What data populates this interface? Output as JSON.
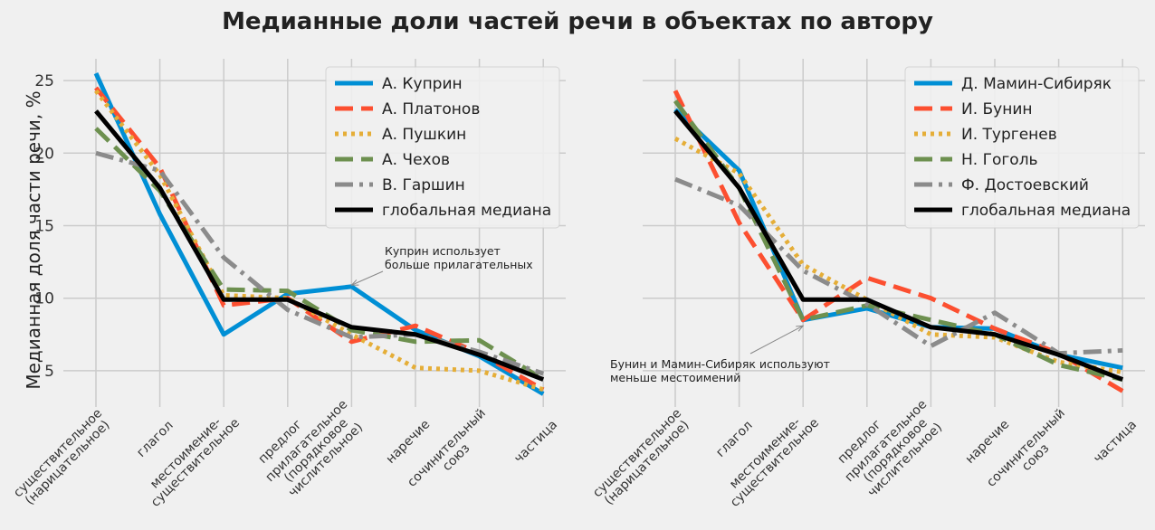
{
  "title": "Медианные доли частей речи в объектах по автору",
  "colors": {
    "background": "#f0f0f0",
    "grid": "#cbcbcb",
    "palette": [
      "#008fd5",
      "#fc4f30",
      "#e5ae38",
      "#6d904f",
      "#8b8b8b",
      "#000000"
    ]
  },
  "chart_data": [
    {
      "type": "line",
      "ylabel": "Медианная доля части речи, %",
      "xlabel": "",
      "yticks": [
        5,
        10,
        15,
        20,
        25
      ],
      "ylim": [
        2.5,
        26.5
      ],
      "grid": true,
      "legend_position": "top-right",
      "categories": [
        [
          "существительное",
          "(нарицательное)"
        ],
        [
          "глагол"
        ],
        [
          "местоимение-",
          "существительное"
        ],
        [
          "предлог"
        ],
        [
          "прилагательное",
          "(порядковое",
          "числительное)"
        ],
        [
          "наречие"
        ],
        [
          "сочинительный",
          "союз"
        ],
        [
          "частица"
        ]
      ],
      "series": [
        {
          "name": "А. Куприн",
          "style": "solid",
          "color": "#008fd5",
          "values": [
            25.5,
            15.8,
            7.5,
            10.3,
            10.8,
            7.8,
            6.0,
            3.4
          ]
        },
        {
          "name": "А. Платонов",
          "style": "dashed",
          "color": "#fc4f30",
          "values": [
            24.5,
            19.0,
            9.5,
            10.0,
            7.0,
            8.1,
            6.2,
            3.7
          ]
        },
        {
          "name": "А. Пушкин",
          "style": "dotted",
          "color": "#e5ae38",
          "values": [
            24.3,
            18.5,
            10.2,
            10.0,
            7.5,
            5.2,
            5.0,
            3.7
          ]
        },
        {
          "name": "А. Чехов",
          "style": "dashed",
          "color": "#6d904f",
          "values": [
            21.7,
            17.4,
            10.6,
            10.5,
            7.8,
            7.0,
            7.1,
            4.4
          ]
        },
        {
          "name": "В. Гаршин",
          "style": "dashdot",
          "color": "#8b8b8b",
          "values": [
            20.0,
            18.8,
            12.8,
            9.2,
            7.3,
            7.5,
            6.3,
            4.8
          ]
        },
        {
          "name": "глобальная медиана",
          "style": "solid",
          "color": "#000000",
          "values": [
            22.9,
            17.6,
            9.9,
            9.9,
            8.0,
            7.5,
            6.1,
            4.4
          ]
        }
      ],
      "annotation": {
        "text": [
          "Куприн использует",
          "больше прилагательных"
        ],
        "x": 4,
        "y": 10.9
      }
    },
    {
      "type": "line",
      "ylabel": "",
      "xlabel": "",
      "yticks": [
        5,
        10,
        15,
        20,
        25
      ],
      "ylim": [
        2.5,
        26.5
      ],
      "grid": true,
      "legend_position": "top-right",
      "categories": [
        [
          "существительное",
          "(нарицательное)"
        ],
        [
          "глагол"
        ],
        [
          "местоимение-",
          "существительное"
        ],
        [
          "предлог"
        ],
        [
          "прилагательное",
          "(порядковое",
          "числительное)"
        ],
        [
          "наречие"
        ],
        [
          "сочинительный",
          "союз"
        ],
        [
          "частица"
        ]
      ],
      "series": [
        {
          "name": "Д. Мамин-Сибиряк",
          "style": "solid",
          "color": "#008fd5",
          "values": [
            23.0,
            18.8,
            8.5,
            9.3,
            8.0,
            7.9,
            6.1,
            5.2
          ]
        },
        {
          "name": "И. Бунин",
          "style": "dashed",
          "color": "#fc4f30",
          "values": [
            24.3,
            15.2,
            8.5,
            11.4,
            10.0,
            7.9,
            6.2,
            3.6
          ]
        },
        {
          "name": "И. Тургенев",
          "style": "dotted",
          "color": "#e5ae38",
          "values": [
            21.0,
            18.6,
            12.3,
            9.9,
            7.5,
            7.3,
            5.6,
            4.9
          ]
        },
        {
          "name": "Н. Гоголь",
          "style": "dashed",
          "color": "#6d904f",
          "values": [
            23.6,
            17.6,
            8.5,
            9.5,
            8.5,
            7.5,
            5.4,
            4.4
          ]
        },
        {
          "name": "Ф. Достоевский",
          "style": "dashdot",
          "color": "#8b8b8b",
          "values": [
            18.2,
            16.4,
            11.9,
            9.6,
            6.7,
            9.0,
            6.2,
            6.4
          ]
        },
        {
          "name": "глобальная медиана",
          "style": "solid",
          "color": "#000000",
          "values": [
            22.9,
            17.6,
            9.9,
            9.9,
            8.0,
            7.5,
            6.1,
            4.4
          ]
        }
      ],
      "annotation": {
        "text": [
          "Бунин и Мамин-Сибиряк используют",
          "меньше местоимений"
        ],
        "x": 2,
        "y": 8.1
      }
    }
  ]
}
